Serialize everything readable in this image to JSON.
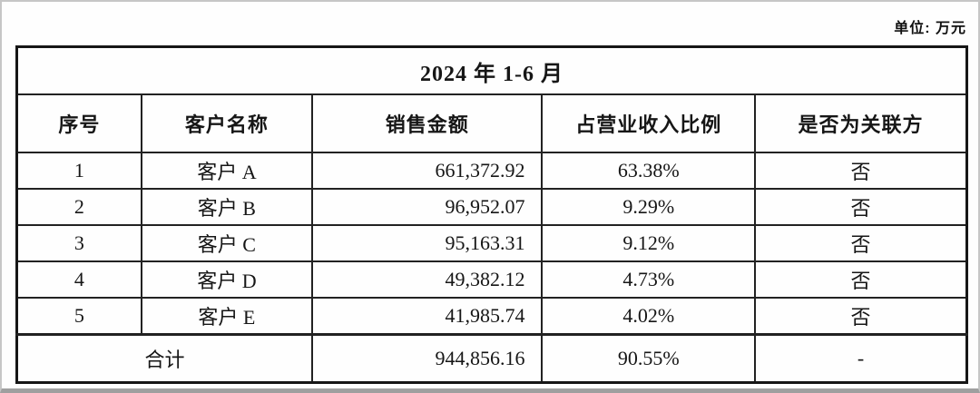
{
  "page": {
    "unit_label": "单位: 万元"
  },
  "table": {
    "title": "2024 年 1-6 月",
    "columns": [
      "序号",
      "客户名称",
      "销售金额",
      "占营业收入比例",
      "是否为关联方"
    ],
    "rows": [
      {
        "no": "1",
        "customer": "客户 A",
        "amount": "661,372.92",
        "ratio": "63.38%",
        "related": "否"
      },
      {
        "no": "2",
        "customer": "客户 B",
        "amount": "96,952.07",
        "ratio": "9.29%",
        "related": "否"
      },
      {
        "no": "3",
        "customer": "客户 C",
        "amount": "95,163.31",
        "ratio": "9.12%",
        "related": "否"
      },
      {
        "no": "4",
        "customer": "客户 D",
        "amount": "49,382.12",
        "ratio": "4.73%",
        "related": "否"
      },
      {
        "no": "5",
        "customer": "客户 E",
        "amount": "41,985.74",
        "ratio": "4.02%",
        "related": "否"
      }
    ],
    "total": {
      "label": "合计",
      "amount": "944,856.16",
      "ratio": "90.55%",
      "related": "-"
    }
  },
  "colors": {
    "border": "#161616",
    "text": "#161616",
    "background": "#fefefe"
  }
}
